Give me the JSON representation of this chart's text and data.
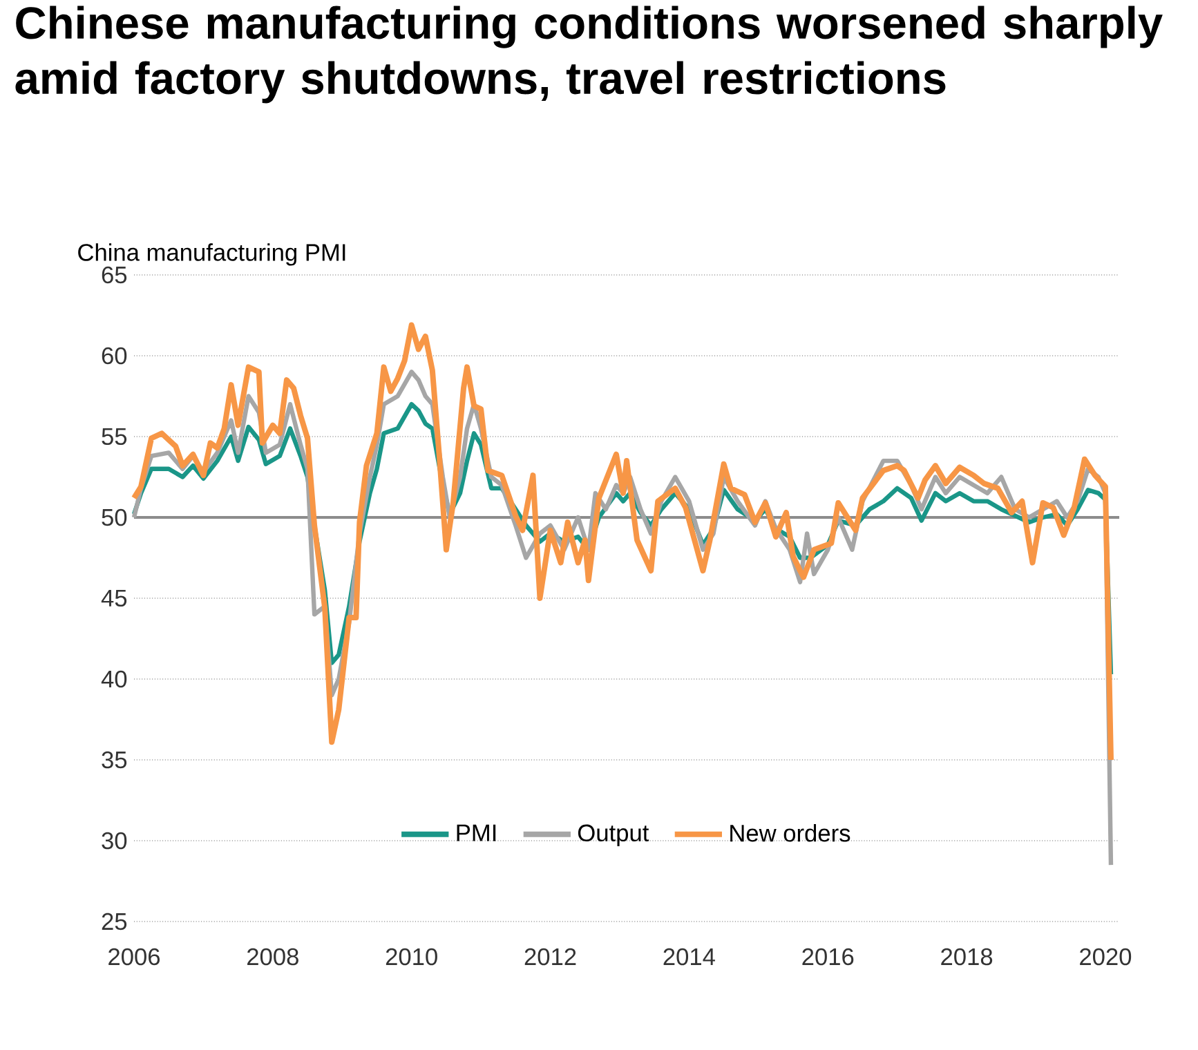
{
  "chart_data": {
    "type": "line",
    "title": "Chinese manufacturing conditions worsened sharply amid factory shutdowns, travel restrictions",
    "ylabel": "China manufacturing PMI",
    "xlim": [
      2006,
      2020.2
    ],
    "xticks": [
      2006,
      2008,
      2010,
      2012,
      2014,
      2016,
      2018,
      2020
    ],
    "ylim": [
      25,
      65
    ],
    "yticks": [
      25,
      30,
      35,
      40,
      45,
      50,
      55,
      60,
      65
    ],
    "grid": "y",
    "legend": "bottom",
    "marker": "none",
    "line_style": "solid",
    "ref_lines": [
      {
        "axis": "y",
        "value": 50,
        "color": "#8c8c8c"
      }
    ],
    "series": [
      {
        "name": "PMI",
        "color": "#1a9688",
        "x": [
          2006.0,
          2006.1,
          2006.25,
          2006.5,
          2006.7,
          2006.85,
          2007.0,
          2007.2,
          2007.4,
          2007.5,
          2007.65,
          2007.8,
          2007.9,
          2008.1,
          2008.25,
          2008.4,
          2008.5,
          2008.6,
          2008.75,
          2008.85,
          2008.95,
          2009.1,
          2009.25,
          2009.4,
          2009.5,
          2009.6,
          2009.8,
          2010.0,
          2010.1,
          2010.2,
          2010.3,
          2010.45,
          2010.55,
          2010.7,
          2010.8,
          2010.9,
          2011.0,
          2011.15,
          2011.3,
          2011.5,
          2011.65,
          2011.85,
          2012.0,
          2012.2,
          2012.4,
          2012.55,
          2012.7,
          2012.95,
          2013.05,
          2013.15,
          2013.3,
          2013.45,
          2013.6,
          2013.8,
          2014.0,
          2014.2,
          2014.35,
          2014.5,
          2014.7,
          2014.95,
          2015.1,
          2015.25,
          2015.45,
          2015.6,
          2015.75,
          2016.0,
          2016.15,
          2016.4,
          2016.6,
          2016.8,
          2017.0,
          2017.2,
          2017.35,
          2017.55,
          2017.7,
          2017.9,
          2018.1,
          2018.3,
          2018.5,
          2018.7,
          2018.9,
          2019.1,
          2019.3,
          2019.45,
          2019.6,
          2019.75,
          2019.9,
          2020.0,
          2020.08
        ],
        "values": [
          50.2,
          51.5,
          53.0,
          53.0,
          52.5,
          53.2,
          52.4,
          53.5,
          55.0,
          53.5,
          55.6,
          54.8,
          53.3,
          53.8,
          55.5,
          53.8,
          52.5,
          49.5,
          45.5,
          41.0,
          41.5,
          44.5,
          48.5,
          51.5,
          53.0,
          55.2,
          55.5,
          57.0,
          56.6,
          55.8,
          55.5,
          52.0,
          50.2,
          51.5,
          53.5,
          55.2,
          54.5,
          51.8,
          51.8,
          50.5,
          49.5,
          48.5,
          49.0,
          48.5,
          48.8,
          48.0,
          50.0,
          51.5,
          51.0,
          51.5,
          50.3,
          49.5,
          50.5,
          51.5,
          50.5,
          48.3,
          49.3,
          51.7,
          50.5,
          49.8,
          50.5,
          49.3,
          48.8,
          47.5,
          47.5,
          48.3,
          49.8,
          49.5,
          50.5,
          51.0,
          51.8,
          51.2,
          49.8,
          51.5,
          51.0,
          51.5,
          51.0,
          51.0,
          50.5,
          50.1,
          49.7,
          50.0,
          50.2,
          49.5,
          50.5,
          51.7,
          51.5,
          51.1,
          40.3
        ]
      },
      {
        "name": "Output",
        "color": "#a6a6a6",
        "x": [
          2006.0,
          2006.1,
          2006.25,
          2006.5,
          2006.7,
          2006.85,
          2007.0,
          2007.2,
          2007.4,
          2007.5,
          2007.65,
          2007.8,
          2007.9,
          2008.1,
          2008.25,
          2008.4,
          2008.5,
          2008.6,
          2008.75,
          2008.85,
          2008.95,
          2009.1,
          2009.25,
          2009.4,
          2009.5,
          2009.6,
          2009.8,
          2010.0,
          2010.1,
          2010.2,
          2010.3,
          2010.45,
          2010.55,
          2010.7,
          2010.8,
          2010.9,
          2011.0,
          2011.15,
          2011.3,
          2011.5,
          2011.65,
          2011.85,
          2012.0,
          2012.2,
          2012.4,
          2012.55,
          2012.65,
          2012.8,
          2012.95,
          2013.05,
          2013.15,
          2013.3,
          2013.45,
          2013.6,
          2013.8,
          2014.0,
          2014.2,
          2014.35,
          2014.5,
          2014.7,
          2014.95,
          2015.1,
          2015.25,
          2015.45,
          2015.6,
          2015.7,
          2015.8,
          2016.0,
          2016.15,
          2016.35,
          2016.5,
          2016.8,
          2017.0,
          2017.2,
          2017.35,
          2017.55,
          2017.7,
          2017.9,
          2018.1,
          2018.3,
          2018.5,
          2018.7,
          2018.9,
          2019.1,
          2019.3,
          2019.45,
          2019.6,
          2019.75,
          2019.9,
          2020.0,
          2020.08
        ],
        "values": [
          50.0,
          51.8,
          53.8,
          54.0,
          53.0,
          53.8,
          52.8,
          54.0,
          56.0,
          54.0,
          57.5,
          56.5,
          54.0,
          54.5,
          57.0,
          54.5,
          53.0,
          44.0,
          44.5,
          39.0,
          40.0,
          43.5,
          49.0,
          52.5,
          54.5,
          57.0,
          57.5,
          59.0,
          58.5,
          57.5,
          57.0,
          52.5,
          50.0,
          52.5,
          55.5,
          57.0,
          55.5,
          52.5,
          52.0,
          49.5,
          47.5,
          49.0,
          49.5,
          48.0,
          50.0,
          48.0,
          51.5,
          50.5,
          52.0,
          51.5,
          52.5,
          50.5,
          49.0,
          51.0,
          52.5,
          51.0,
          48.0,
          49.0,
          52.5,
          51.0,
          49.5,
          51.0,
          49.3,
          48.0,
          46.0,
          49.0,
          46.5,
          48.0,
          50.0,
          48.0,
          51.0,
          53.5,
          53.5,
          52.0,
          50.5,
          52.5,
          51.5,
          52.5,
          52.0,
          51.5,
          52.5,
          50.5,
          50.0,
          50.5,
          51.0,
          50.0,
          51.0,
          53.0,
          52.5,
          51.5,
          28.5
        ]
      },
      {
        "name": "New orders",
        "color": "#f79646",
        "x": [
          2006.0,
          2006.1,
          2006.25,
          2006.4,
          2006.6,
          2006.7,
          2006.85,
          2007.0,
          2007.1,
          2007.2,
          2007.3,
          2007.4,
          2007.5,
          2007.65,
          2007.8,
          2007.85,
          2008.0,
          2008.1,
          2008.2,
          2008.3,
          2008.4,
          2008.5,
          2008.6,
          2008.75,
          2008.85,
          2008.95,
          2009.1,
          2009.2,
          2009.25,
          2009.35,
          2009.5,
          2009.6,
          2009.7,
          2009.8,
          2009.9,
          2010.0,
          2010.1,
          2010.2,
          2010.3,
          2010.4,
          2010.5,
          2010.6,
          2010.75,
          2010.8,
          2010.9,
          2011.0,
          2011.1,
          2011.3,
          2011.5,
          2011.6,
          2011.75,
          2011.85,
          2012.0,
          2012.15,
          2012.25,
          2012.4,
          2012.5,
          2012.55,
          2012.7,
          2012.95,
          2013.05,
          2013.1,
          2013.25,
          2013.45,
          2013.55,
          2013.8,
          2013.95,
          2014.2,
          2014.3,
          2014.5,
          2014.6,
          2014.8,
          2014.95,
          2015.1,
          2015.25,
          2015.4,
          2015.5,
          2015.6,
          2015.65,
          2015.8,
          2016.05,
          2016.15,
          2016.4,
          2016.5,
          2016.8,
          2017.0,
          2017.1,
          2017.3,
          2017.4,
          2017.55,
          2017.7,
          2017.9,
          2018.1,
          2018.25,
          2018.45,
          2018.65,
          2018.8,
          2018.95,
          2019.1,
          2019.25,
          2019.4,
          2019.55,
          2019.7,
          2019.85,
          2020.0,
          2020.08
        ],
        "values": [
          51.2,
          51.9,
          54.9,
          55.2,
          54.4,
          53.2,
          53.9,
          52.6,
          54.6,
          54.3,
          55.5,
          58.2,
          55.7,
          59.3,
          59.0,
          54.6,
          55.7,
          55.2,
          58.5,
          58.0,
          56.3,
          54.9,
          49.5,
          44.4,
          36.1,
          38.1,
          43.8,
          43.8,
          49.7,
          53.2,
          55.2,
          59.3,
          57.8,
          58.6,
          59.7,
          61.9,
          60.4,
          61.2,
          59.1,
          53.8,
          48.0,
          50.9,
          58.0,
          59.3,
          56.9,
          56.7,
          52.9,
          52.6,
          50.1,
          49.2,
          52.6,
          45.0,
          49.2,
          47.2,
          49.7,
          47.2,
          48.6,
          46.1,
          51.2,
          53.9,
          51.5,
          53.5,
          48.6,
          46.7,
          51.0,
          51.8,
          50.6,
          46.7,
          48.6,
          53.3,
          51.8,
          51.4,
          49.7,
          50.9,
          48.8,
          50.3,
          47.6,
          46.7,
          46.3,
          48.0,
          48.4,
          50.9,
          49.2,
          51.2,
          52.9,
          53.2,
          52.9,
          51.2,
          52.3,
          53.2,
          52.1,
          53.1,
          52.6,
          52.1,
          51.8,
          50.3,
          51.0,
          47.2,
          50.9,
          50.6,
          48.9,
          50.6,
          53.6,
          52.6,
          51.9,
          35.0
        ]
      }
    ]
  }
}
